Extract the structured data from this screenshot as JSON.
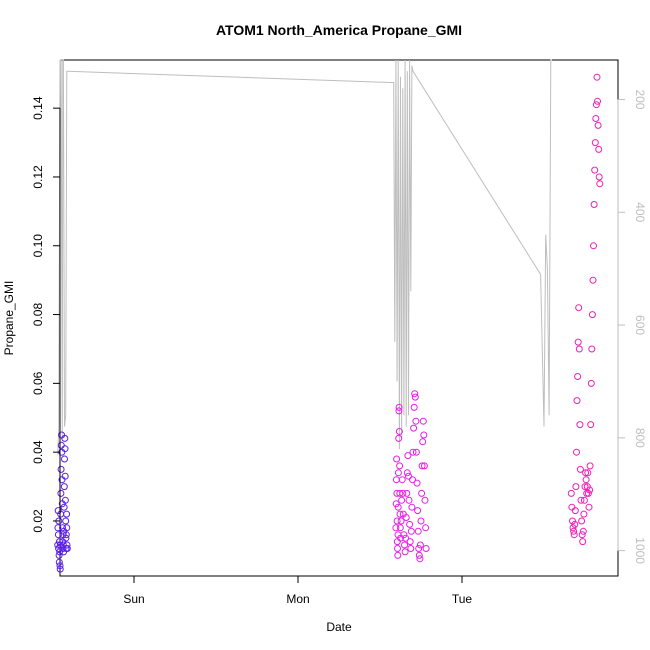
{
  "chart_data": {
    "type": "scatter",
    "title": "ATOM1 North_America Propane_GMI",
    "xlabel": "Date",
    "ylabel": "Propane_GMI",
    "x_ticks": [
      "Sun",
      "Mon",
      "Tue"
    ],
    "y_ticks": [
      "0.02",
      "0.04",
      "0.06",
      "0.08",
      "0.10",
      "0.12",
      "0.14"
    ],
    "y_tick_values": [
      0.02,
      0.04,
      0.06,
      0.08,
      0.1,
      0.12,
      0.14
    ],
    "ylim": [
      0.004,
      0.154
    ],
    "secondary_y_ticks": [
      "200",
      "400",
      "600",
      "800",
      "1000"
    ],
    "secondary_y_tick_values": [
      200,
      400,
      600,
      800,
      1000
    ],
    "secondary_ylim": [
      1045,
      130
    ],
    "xlim": [
      "Sat 10:50",
      "Tue 22:55"
    ],
    "grid": false,
    "colors": {
      "group1": "#5a1fe6",
      "group2": "#e61fe6",
      "group3": "#f01fb4",
      "pressure_line": "#bebebe"
    },
    "series": [
      {
        "kind": "scatter",
        "color_key": "group1",
        "points": [
          [
            "Sat 12:50",
            0.013
          ],
          [
            "Sat 12:52",
            0.018
          ],
          [
            "Sat 12:54",
            0.023
          ],
          [
            "Sat 12:56",
            0.016
          ],
          [
            "Sat 12:58",
            0.012
          ],
          [
            "Sat 13:00",
            0.02
          ],
          [
            "Sat 13:02",
            0.01
          ],
          [
            "Sat 13:04",
            0.008
          ],
          [
            "Sat 13:06",
            0.014
          ],
          [
            "Sat 13:08",
            0.011
          ],
          [
            "Sat 13:10",
            0.007
          ],
          [
            "Sat 13:12",
            0.006
          ],
          [
            "Sat 13:14",
            0.013
          ],
          [
            "Sat 13:16",
            0.022
          ],
          [
            "Sat 13:18",
            0.028
          ],
          [
            "Sat 13:20",
            0.035
          ],
          [
            "Sat 13:22",
            0.042
          ],
          [
            "Sat 13:24",
            0.045
          ],
          [
            "Sat 13:26",
            0.04
          ],
          [
            "Sat 13:28",
            0.032
          ],
          [
            "Sat 13:30",
            0.025
          ],
          [
            "Sat 13:32",
            0.018
          ],
          [
            "Sat 13:34",
            0.014
          ],
          [
            "Sat 13:36",
            0.012
          ],
          [
            "Sat 13:38",
            0.016
          ],
          [
            "Sat 13:40",
            0.013
          ],
          [
            "Sat 13:42",
            0.011
          ],
          [
            "Sat 13:44",
            0.017
          ],
          [
            "Sat 13:46",
            0.024
          ],
          [
            "Sat 13:48",
            0.03
          ],
          [
            "Sat 13:50",
            0.038
          ],
          [
            "Sat 13:52",
            0.044
          ],
          [
            "Sat 13:54",
            0.041
          ],
          [
            "Sat 13:56",
            0.033
          ],
          [
            "Sat 13:58",
            0.026
          ],
          [
            "Sat 14:00",
            0.02
          ],
          [
            "Sat 14:02",
            0.015
          ],
          [
            "Sat 14:04",
            0.012
          ],
          [
            "Sat 14:06",
            0.016
          ],
          [
            "Sat 14:08",
            0.022
          ],
          [
            "Sat 14:10",
            0.018
          ],
          [
            "Sat 14:12",
            0.013
          ],
          [
            "Sat 14:14",
            0.012
          ]
        ]
      },
      {
        "kind": "scatter",
        "color_key": "group2",
        "points": [
          [
            "Mon 14:20",
            0.018
          ],
          [
            "Mon 14:22",
            0.025
          ],
          [
            "Mon 14:24",
            0.032
          ],
          [
            "Mon 14:26",
            0.038
          ],
          [
            "Mon 14:28",
            0.028
          ],
          [
            "Mon 14:30",
            0.02
          ],
          [
            "Mon 14:32",
            0.014
          ],
          [
            "Mon 14:34",
            0.012
          ],
          [
            "Mon 14:36",
            0.01
          ],
          [
            "Mon 14:38",
            0.016
          ],
          [
            "Mon 14:40",
            0.024
          ],
          [
            "Mon 14:42",
            0.034
          ],
          [
            "Mon 14:44",
            0.044
          ],
          [
            "Mon 14:46",
            0.052
          ],
          [
            "Mon 14:48",
            0.053
          ],
          [
            "Mon 14:50",
            0.046
          ],
          [
            "Mon 14:52",
            0.036
          ],
          [
            "Mon 14:54",
            0.028
          ],
          [
            "Mon 14:56",
            0.022
          ],
          [
            "Mon 14:58",
            0.018
          ],
          [
            "Mon 15:00",
            0.015
          ],
          [
            "Mon 15:05",
            0.02
          ],
          [
            "Mon 15:10",
            0.026
          ],
          [
            "Mon 15:15",
            0.032
          ],
          [
            "Mon 15:20",
            0.028
          ],
          [
            "Mon 15:25",
            0.022
          ],
          [
            "Mon 15:30",
            0.016
          ],
          [
            "Mon 15:35",
            0.013
          ],
          [
            "Mon 15:40",
            0.011
          ],
          [
            "Mon 15:45",
            0.015
          ],
          [
            "Mon 15:50",
            0.021
          ],
          [
            "Mon 15:55",
            0.028
          ],
          [
            "Mon 16:00",
            0.034
          ],
          [
            "Mon 16:05",
            0.039
          ],
          [
            "Mon 16:10",
            0.033
          ],
          [
            "Mon 16:15",
            0.026
          ],
          [
            "Mon 16:20",
            0.019
          ],
          [
            "Mon 16:25",
            0.014
          ],
          [
            "Mon 16:30",
            0.012
          ],
          [
            "Mon 16:35",
            0.017
          ],
          [
            "Mon 16:40",
            0.024
          ],
          [
            "Mon 16:45",
            0.032
          ],
          [
            "Mon 16:50",
            0.04
          ],
          [
            "Mon 16:55",
            0.047
          ],
          [
            "Mon 17:00",
            0.053
          ],
          [
            "Mon 17:05",
            0.057
          ],
          [
            "Mon 17:10",
            0.056
          ],
          [
            "Mon 17:15",
            0.049
          ],
          [
            "Mon 17:20",
            0.04
          ],
          [
            "Mon 17:25",
            0.031
          ],
          [
            "Mon 17:30",
            0.023
          ],
          [
            "Mon 17:35",
            0.017
          ],
          [
            "Mon 17:40",
            0.012
          ],
          [
            "Mon 17:45",
            0.01
          ],
          [
            "Mon 17:50",
            0.009
          ],
          [
            "Mon 17:55",
            0.013
          ],
          [
            "Mon 18:00",
            0.02
          ],
          [
            "Mon 18:05",
            0.028
          ],
          [
            "Mon 18:10",
            0.036
          ],
          [
            "Mon 18:15",
            0.043
          ],
          [
            "Mon 18:20",
            0.049
          ],
          [
            "Mon 18:25",
            0.045
          ],
          [
            "Mon 18:30",
            0.036
          ],
          [
            "Mon 18:35",
            0.026
          ],
          [
            "Mon 18:40",
            0.018
          ],
          [
            "Mon 18:45",
            0.012
          ]
        ]
      },
      {
        "kind": "scatter",
        "color_key": "group3",
        "points": [
          [
            "Tue 16:00",
            0.028
          ],
          [
            "Tue 16:05",
            0.024
          ],
          [
            "Tue 16:10",
            0.02
          ],
          [
            "Tue 16:15",
            0.018
          ],
          [
            "Tue 16:20",
            0.017
          ],
          [
            "Tue 16:25",
            0.016
          ],
          [
            "Tue 16:30",
            0.019
          ],
          [
            "Tue 16:35",
            0.023
          ],
          [
            "Tue 16:40",
            0.03
          ],
          [
            "Tue 16:45",
            0.04
          ],
          [
            "Tue 16:50",
            0.055
          ],
          [
            "Tue 16:55",
            0.062
          ],
          [
            "Tue 17:00",
            0.072
          ],
          [
            "Tue 17:05",
            0.082
          ],
          [
            "Tue 17:10",
            0.07
          ],
          [
            "Tue 17:15",
            0.048
          ],
          [
            "Tue 17:20",
            0.035
          ],
          [
            "Tue 17:25",
            0.026
          ],
          [
            "Tue 17:30",
            0.02
          ],
          [
            "Tue 17:35",
            0.016
          ],
          [
            "Tue 17:40",
            0.014
          ],
          [
            "Tue 17:45",
            0.017
          ],
          [
            "Tue 17:50",
            0.022
          ],
          [
            "Tue 17:55",
            0.026
          ],
          [
            "Tue 18:00",
            0.03
          ],
          [
            "Tue 18:05",
            0.034
          ],
          [
            "Tue 18:10",
            0.032
          ],
          [
            "Tue 18:15",
            0.028
          ],
          [
            "Tue 18:20",
            0.03
          ],
          [
            "Tue 18:25",
            0.034
          ],
          [
            "Tue 18:30",
            0.028
          ],
          [
            "Tue 18:35",
            0.024
          ],
          [
            "Tue 18:40",
            0.029
          ],
          [
            "Tue 18:45",
            0.036
          ],
          [
            "Tue 18:50",
            0.048
          ],
          [
            "Tue 18:55",
            0.06
          ],
          [
            "Tue 19:00",
            0.07
          ],
          [
            "Tue 19:05",
            0.08
          ],
          [
            "Tue 19:10",
            0.09
          ],
          [
            "Tue 19:15",
            0.1
          ],
          [
            "Tue 19:20",
            0.112
          ],
          [
            "Tue 19:25",
            0.122
          ],
          [
            "Tue 19:30",
            0.13
          ],
          [
            "Tue 19:35",
            0.137
          ],
          [
            "Tue 19:40",
            0.141
          ],
          [
            "Tue 19:45",
            0.149
          ],
          [
            "Tue 19:50",
            0.142
          ],
          [
            "Tue 19:55",
            0.135
          ],
          [
            "Tue 20:00",
            0.128
          ],
          [
            "Tue 20:05",
            0.12
          ],
          [
            "Tue 20:10",
            0.118
          ]
        ]
      },
      {
        "kind": "line",
        "name": "pressure",
        "axis": "secondary",
        "color_key": "pressure_line",
        "points": [
          [
            "Sat 12:50",
            830
          ],
          [
            "Sat 13:00",
            780
          ],
          [
            "Sat 13:10",
            130
          ],
          [
            "Sat 13:20",
            130
          ],
          [
            "Sat 13:25",
            480
          ],
          [
            "Sat 13:30",
            800
          ],
          [
            "Sat 13:35",
            130
          ],
          [
            "Sat 13:40",
            130
          ],
          [
            "Sat 13:50",
            780
          ],
          [
            "Sat 14:00",
            760
          ],
          [
            "Sat 14:10",
            150
          ],
          [
            "Sat 14:20",
            150
          ],
          [
            "Mon 14:00",
            170
          ],
          [
            "Mon 14:10",
            630
          ],
          [
            "Mon 14:20",
            130
          ],
          [
            "Mon 14:30",
            700
          ],
          [
            "Mon 14:40",
            130
          ],
          [
            "Mon 14:50",
            820
          ],
          [
            "Mon 15:00",
            160
          ],
          [
            "Mon 15:10",
            800
          ],
          [
            "Mon 15:20",
            180
          ],
          [
            "Mon 15:30",
            760
          ],
          [
            "Mon 15:40",
            130
          ],
          [
            "Mon 15:50",
            780
          ],
          [
            "Mon 16:00",
            150
          ],
          [
            "Mon 16:10",
            760
          ],
          [
            "Mon 16:20",
            130
          ],
          [
            "Mon 16:30",
            540
          ],
          [
            "Mon 16:40",
            140
          ],
          [
            "Mon 16:50",
            150
          ],
          [
            "Tue 11:30",
            510
          ],
          [
            "Tue 12:00",
            780
          ],
          [
            "Tue 12:15",
            440
          ],
          [
            "Tue 12:30",
            500
          ],
          [
            "Tue 12:45",
            760
          ],
          [
            "Tue 13:00",
            130
          ],
          [
            "Tue 13:10",
            130
          ]
        ]
      }
    ]
  }
}
